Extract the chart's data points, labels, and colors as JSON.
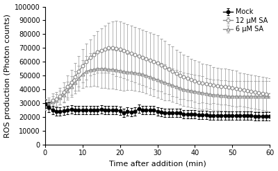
{
  "title": "",
  "xlabel": "Time after addition (min)",
  "ylabel": "ROS production (Photon counts)",
  "xlim": [
    0,
    60
  ],
  "ylim": [
    0,
    100000
  ],
  "yticks": [
    0,
    10000,
    20000,
    30000,
    40000,
    50000,
    60000,
    70000,
    80000,
    90000,
    100000
  ],
  "ytick_labels": [
    "0",
    "10000",
    "20000",
    "30000",
    "40000",
    "50000",
    "60000",
    "70000",
    "80000",
    "90000",
    "100000"
  ],
  "xticks": [
    0,
    10,
    20,
    30,
    40,
    50,
    60
  ],
  "time_points": [
    0,
    1,
    2,
    3,
    4,
    5,
    6,
    7,
    8,
    9,
    10,
    11,
    12,
    13,
    14,
    15,
    16,
    17,
    18,
    19,
    20,
    21,
    22,
    23,
    24,
    25,
    26,
    27,
    28,
    29,
    30,
    31,
    32,
    33,
    34,
    35,
    36,
    37,
    38,
    39,
    40,
    41,
    42,
    43,
    44,
    45,
    46,
    47,
    48,
    49,
    50,
    51,
    52,
    53,
    54,
    55,
    56,
    57,
    58,
    59,
    60
  ],
  "mock_mean": [
    29500,
    27000,
    25000,
    24000,
    24000,
    24500,
    25000,
    25500,
    25000,
    25000,
    25000,
    25000,
    25000,
    25000,
    25000,
    25500,
    25000,
    25000,
    25000,
    25000,
    24500,
    23000,
    24000,
    23500,
    24000,
    26000,
    25000,
    25000,
    25000,
    25000,
    24000,
    23500,
    23000,
    23000,
    23000,
    23000,
    23000,
    22000,
    22000,
    22000,
    22000,
    21500,
    21500,
    21500,
    21000,
    21000,
    21000,
    21000,
    21000,
    21000,
    21000,
    21000,
    21000,
    21000,
    21000,
    21000,
    20500,
    20500,
    20500,
    20500,
    20500
  ],
  "mock_err": [
    3000,
    3500,
    3000,
    3000,
    3000,
    3000,
    3000,
    3000,
    3000,
    3000,
    3000,
    3000,
    3000,
    3000,
    3000,
    3000,
    3000,
    3000,
    3000,
    3000,
    3000,
    3000,
    3000,
    3000,
    3000,
    3000,
    3000,
    3000,
    3000,
    3000,
    3000,
    3000,
    3000,
    3000,
    3000,
    3000,
    3000,
    3000,
    3000,
    3000,
    3000,
    3000,
    3000,
    3000,
    3000,
    3000,
    3000,
    3000,
    3000,
    3000,
    3000,
    3000,
    3000,
    3000,
    3000,
    3000,
    3000,
    3000,
    3000,
    3000,
    3000
  ],
  "sa12_mean": [
    29000,
    30000,
    32000,
    33000,
    35000,
    38000,
    42000,
    45000,
    49000,
    53000,
    57000,
    60000,
    63000,
    65000,
    67000,
    68000,
    69000,
    70000,
    70000,
    69500,
    69000,
    68000,
    67000,
    66000,
    65000,
    64000,
    63000,
    62000,
    61000,
    60000,
    59000,
    57500,
    56000,
    54500,
    53000,
    51500,
    50000,
    49000,
    48000,
    47000,
    46000,
    45000,
    44500,
    44000,
    43500,
    43000,
    42500,
    42000,
    42000,
    41500,
    41000,
    40500,
    40000,
    39500,
    39000,
    38500,
    38000,
    37500,
    37000,
    36500,
    36000
  ],
  "sa12_err": [
    4000,
    4000,
    5000,
    5000,
    6000,
    7000,
    8000,
    9000,
    10000,
    11000,
    12000,
    13000,
    13000,
    14000,
    15000,
    16000,
    17000,
    18000,
    19000,
    20000,
    20000,
    20000,
    20000,
    20000,
    20000,
    20000,
    20000,
    20000,
    20000,
    20000,
    20000,
    19000,
    19000,
    18000,
    18000,
    17000,
    17000,
    16000,
    16000,
    15000,
    15000,
    15000,
    14000,
    14000,
    14000,
    13000,
    13000,
    13000,
    13000,
    13000,
    13000,
    13000,
    12000,
    12000,
    12000,
    12000,
    12000,
    12000,
    12000,
    12000,
    12000
  ],
  "sa6_mean": [
    28000,
    29000,
    31000,
    32000,
    34000,
    36000,
    39000,
    42000,
    45000,
    48000,
    51000,
    53000,
    54000,
    54500,
    55000,
    55000,
    55000,
    54500,
    54500,
    54000,
    53500,
    53000,
    52500,
    52500,
    52000,
    51500,
    51000,
    50000,
    49000,
    48000,
    47000,
    46000,
    45000,
    44000,
    43000,
    42000,
    41000,
    40000,
    39500,
    39000,
    38500,
    38000,
    37500,
    37000,
    36500,
    36000,
    36000,
    35500,
    35500,
    35000,
    35000,
    35000,
    35000,
    35000,
    35000,
    35000,
    35000,
    35000,
    35000,
    35000,
    35000
  ],
  "sa6_err": [
    3000,
    3500,
    4000,
    4500,
    5000,
    5500,
    6500,
    7500,
    8000,
    9000,
    10000,
    11000,
    12000,
    12000,
    13000,
    14000,
    14000,
    14000,
    14000,
    14000,
    14000,
    14000,
    13000,
    13000,
    13000,
    13000,
    13000,
    13000,
    13000,
    13000,
    13000,
    13000,
    13000,
    12000,
    12000,
    12000,
    12000,
    12000,
    12000,
    12000,
    12000,
    12000,
    12000,
    11000,
    11000,
    11000,
    11000,
    11000,
    11000,
    11000,
    11000,
    11000,
    11000,
    11000,
    11000,
    11000,
    11000,
    11000,
    11000,
    11000,
    11000
  ],
  "mock_color": "#000000",
  "sa12_color": "#888888",
  "sa6_color": "#888888",
  "err_color": "#aaaaaa",
  "legend_labels": [
    "Mock",
    "12 μM SA",
    "6 μM SA"
  ],
  "marker_size": 3.5,
  "linewidth": 1.0,
  "error_capsize": 1.5,
  "error_linewidth": 0.6,
  "background_color": "#ffffff"
}
